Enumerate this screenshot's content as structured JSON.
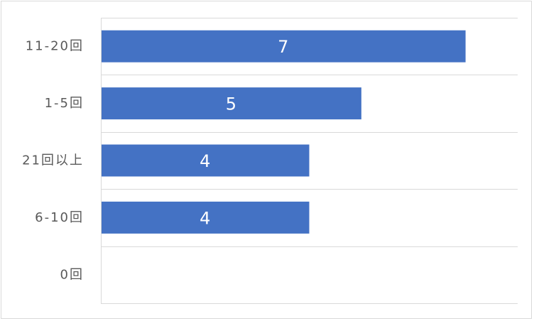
{
  "chart_data": {
    "type": "bar",
    "orientation": "horizontal",
    "categories": [
      "11-20回",
      "1-5回",
      "21回以上",
      "6-10回",
      "0回"
    ],
    "values": [
      7,
      5,
      4,
      4,
      0
    ],
    "data_labels": [
      "7",
      "5",
      "4",
      "4",
      ""
    ],
    "xlim": [
      0,
      8
    ],
    "grid": true,
    "legend": "none",
    "bar_color": "#4472C4",
    "grid_color": "#d9d9d9",
    "axis_color": "#d9d9d9",
    "tick_label_color": "#595959",
    "data_label_color": "#ffffff"
  }
}
